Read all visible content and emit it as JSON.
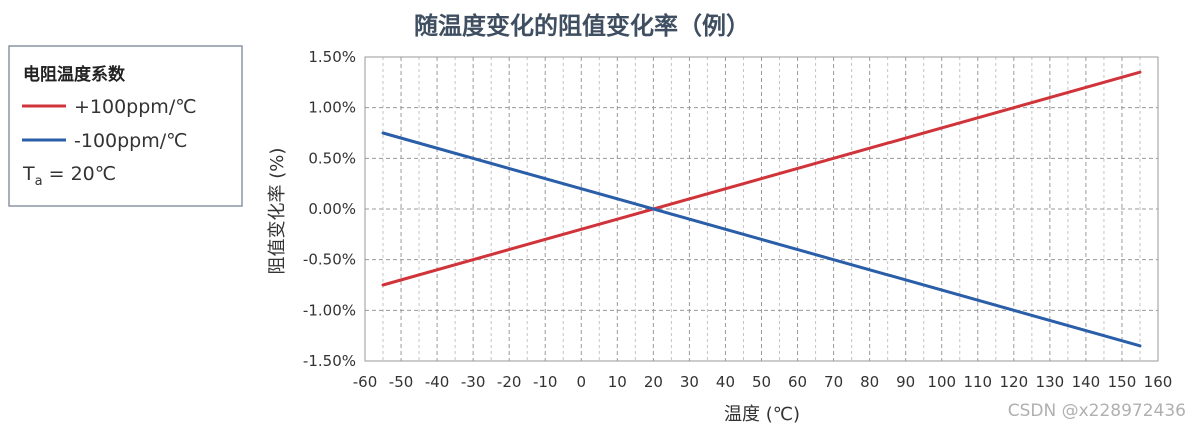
{
  "chart_data": {
    "type": "line",
    "title": "随温度变化的阻值变化率（例）",
    "xlabel": "温度 (℃)",
    "ylabel": "阻值变化率 (%)",
    "xlim": [
      -60,
      160
    ],
    "ylim": [
      -1.5,
      1.5
    ],
    "x_ticks": [
      -60,
      -50,
      -40,
      -30,
      -20,
      -10,
      0,
      10,
      20,
      30,
      40,
      50,
      60,
      70,
      80,
      90,
      100,
      110,
      120,
      130,
      140,
      150,
      160
    ],
    "x_tick_labels": [
      "-60",
      "-50",
      "-40",
      "-30",
      "-20",
      "-10",
      "0",
      "10",
      "20",
      "30",
      "40",
      "50",
      "60",
      "70",
      "80",
      "90",
      "100",
      "110",
      "120",
      "130",
      "140",
      "150",
      "160"
    ],
    "y_ticks": [
      -1.5,
      -1.0,
      -0.5,
      0.0,
      0.5,
      1.0,
      1.5
    ],
    "y_tick_labels": [
      "-1.50%",
      "-1.00%",
      "-0.50%",
      "0.00%",
      "0.50%",
      "1.00%",
      "1.50%"
    ],
    "grid": true,
    "legend": {
      "placement": "outside-left",
      "title": "电阻温度系数",
      "note_main": "T",
      "note_sub": "a",
      "note_rest": " = 20℃"
    },
    "series": [
      {
        "name": "+100ppm/℃",
        "color": "#d0343a",
        "x": [
          -55,
          155
        ],
        "y": [
          -0.75,
          1.35
        ]
      },
      {
        "name": "-100ppm/℃",
        "color": "#2a5ea8",
        "x": [
          -55,
          155
        ],
        "y": [
          0.75,
          -1.35
        ]
      }
    ]
  },
  "watermark": "CSDN @x228972436"
}
